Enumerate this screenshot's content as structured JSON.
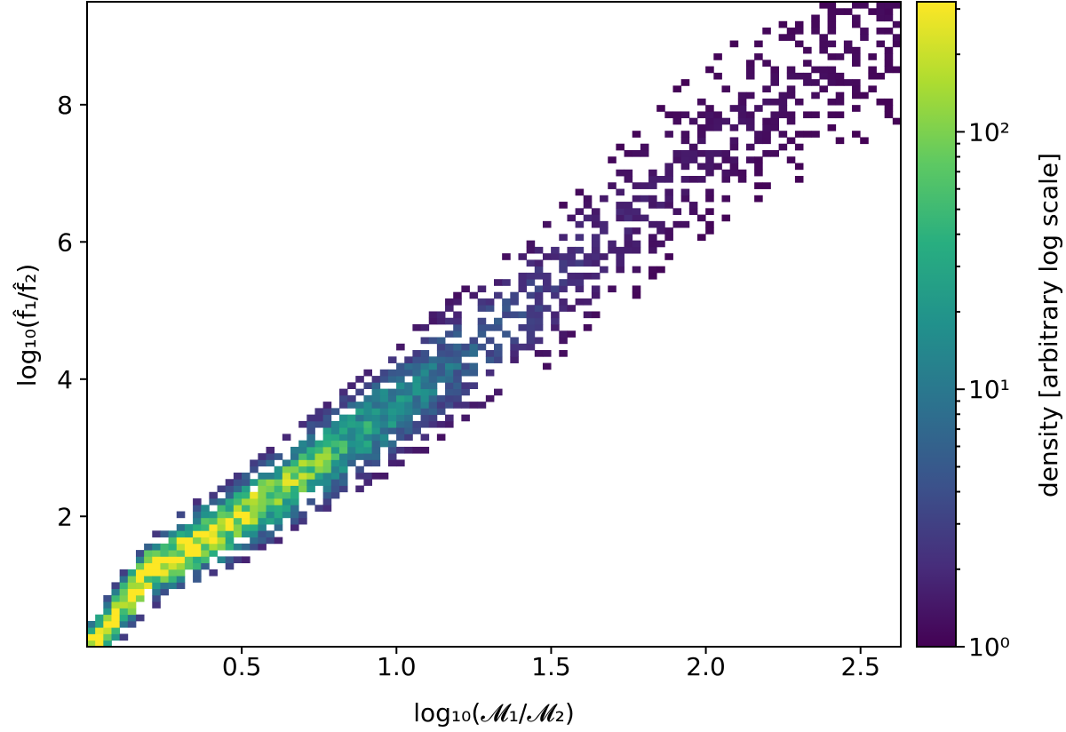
{
  "chart_data": {
    "type": "heatmap",
    "xlabel": "log₁₀(𝓜₁/𝓜₂)",
    "ylabel": "log₁₀(f̂₁/f̂₂)",
    "xlim": [
      0.0,
      2.63
    ],
    "ylim": [
      0.1,
      9.5
    ],
    "xticks": [
      {
        "value": 0.5,
        "label": "0.5"
      },
      {
        "value": 1.0,
        "label": "1.0"
      },
      {
        "value": 1.5,
        "label": "1.5"
      },
      {
        "value": 2.0,
        "label": "2.0"
      },
      {
        "value": 2.5,
        "label": "2.5"
      }
    ],
    "yticks": [
      {
        "value": 2,
        "label": "2"
      },
      {
        "value": 4,
        "label": "4"
      },
      {
        "value": 6,
        "label": "6"
      },
      {
        "value": 8,
        "label": "8"
      }
    ],
    "colormap": "viridis",
    "colorbar": {
      "label": "density [arbitrary log scale]",
      "scale": "log",
      "range": [
        1,
        320
      ],
      "ticks": [
        {
          "value": 1,
          "label": "10⁰"
        },
        {
          "value": 10,
          "label": "10¹"
        },
        {
          "value": 100,
          "label": "10²"
        }
      ]
    },
    "bins": {
      "x": 100,
      "y": 100
    },
    "density_ridge": {
      "description_points": [
        {
          "x": 0.02,
          "y": 0.12
        },
        {
          "x": 0.2,
          "y": 1.2
        },
        {
          "x": 0.5,
          "y": 2.0
        },
        {
          "x": 1.0,
          "y": 3.6
        },
        {
          "x": 1.5,
          "y": 5.3
        },
        {
          "x": 2.0,
          "y": 7.3
        },
        {
          "x": 2.6,
          "y": 9.3
        }
      ],
      "peak": {
        "x": 0.22,
        "y": 1.25,
        "value": 320
      }
    }
  }
}
